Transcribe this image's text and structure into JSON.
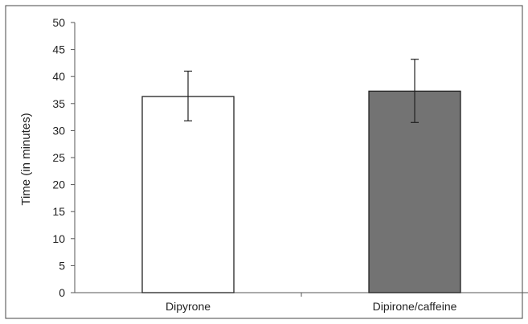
{
  "chart_data": {
    "type": "bar",
    "categories": [
      "Dipyrone",
      "Dipirone/caffeine"
    ],
    "values": [
      36.3,
      37.3
    ],
    "error_low": [
      31.8,
      31.5
    ],
    "error_high": [
      41.0,
      43.2
    ],
    "xlabel": "",
    "ylabel": "Time (in minutes)",
    "ylim": [
      0,
      50
    ],
    "yticks": [
      "0",
      "5",
      "10",
      "15",
      "20",
      "25",
      "30",
      "35",
      "40",
      "45",
      "50"
    ],
    "bar_colors": [
      "#ffffff",
      "#737373"
    ],
    "bar_edge_color": "#222222",
    "grid": false,
    "legend": "none"
  }
}
